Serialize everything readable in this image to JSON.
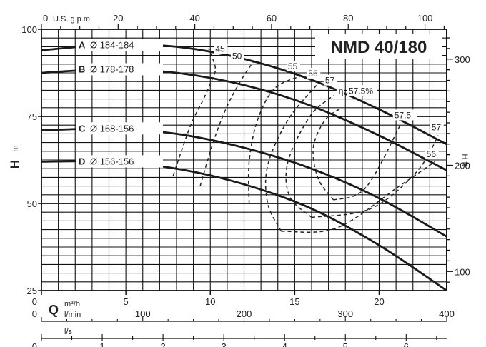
{
  "chart_data": {
    "type": "line",
    "title": "NMD 40/180",
    "xlabel": "Q",
    "ylabel": "H",
    "x_unit": "m³/h",
    "y_unit": "m",
    "xlim": [
      0,
      24
    ],
    "ylim": [
      25,
      100
    ],
    "x_ticks": [
      "0",
      "5",
      "10",
      "15",
      "20"
    ],
    "y_ticks": [
      "25",
      "50",
      "75",
      "100"
    ],
    "grid": true,
    "secondary_axes": {
      "top": {
        "label": "U.S. g.p.m.",
        "ticks": [
          "0",
          "20",
          "40",
          "60",
          "80",
          "100"
        ]
      },
      "right": {
        "label": "H ft",
        "ticks": [
          "100",
          "200",
          "300"
        ]
      },
      "bottom_lmin": {
        "label": "l/min",
        "ticks": [
          "0",
          "100",
          "200",
          "300",
          "400"
        ]
      },
      "bottom_ls": {
        "label": "l/s",
        "ticks": [
          "0",
          "1",
          "2",
          "3",
          "4",
          "5",
          "6"
        ]
      }
    },
    "series": [
      {
        "letter": "A",
        "name": "Ø 184-184",
        "x": [
          0,
          4,
          8,
          12,
          16,
          20,
          24
        ],
        "y": [
          94,
          95.5,
          95,
          91.5,
          85.5,
          77,
          67
        ]
      },
      {
        "letter": "B",
        "name": "Ø 178-178",
        "x": [
          0,
          4,
          8,
          12,
          16,
          20,
          24
        ],
        "y": [
          87.5,
          88.5,
          87.5,
          84,
          78,
          69.5,
          59.5
        ]
      },
      {
        "letter": "C",
        "name": "Ø 168-156",
        "x": [
          0,
          4,
          8,
          12,
          16,
          20,
          24
        ],
        "y": [
          71,
          71.5,
          70,
          66,
          60,
          51.5,
          40.5
        ]
      },
      {
        "letter": "D",
        "name": "Ø 156-156",
        "x": [
          0,
          4,
          8,
          12,
          16,
          20,
          24
        ],
        "y": [
          62,
          62,
          60,
          55.5,
          48.5,
          38,
          25
        ]
      }
    ],
    "efficiency_curves": [
      {
        "label": "45",
        "x": [
          7.8,
          8.8,
          9.6,
          10.1,
          10.3,
          9.9
        ],
        "y": [
          58,
          72,
          80,
          85.5,
          89,
          94.5
        ]
      },
      {
        "label": "50",
        "x": [
          9.4,
          10.2,
          11,
          11.9,
          12.6
        ],
        "y": [
          55,
          68,
          78,
          86,
          91
        ]
      },
      {
        "label": "55",
        "x": [
          12.3,
          12.3,
          12.8,
          13.8,
          15.3
        ],
        "y": [
          50,
          62,
          74,
          83,
          86.5
        ]
      },
      {
        "label": "56",
        "x": [
          14.2,
          13.4,
          13.4,
          14.6,
          16.3
        ],
        "y": [
          42,
          50,
          61,
          74,
          84
        ]
      },
      {
        "label": "57",
        "x": [
          16,
          14.7,
          14.6,
          15.9,
          17.3
        ],
        "y": [
          46,
          52,
          62,
          75,
          81
        ]
      },
      {
        "label": "57.5%",
        "x": [
          17.3,
          16.4,
          16.1,
          16.8,
          17.8
        ],
        "y": [
          51,
          57,
          66,
          74,
          77.5
        ]
      },
      {
        "label": "57.5",
        "x": [
          17.3,
          19.2,
          21.3
        ],
        "y": [
          51,
          54.5,
          73
        ]
      },
      {
        "label": "57",
        "x": [
          16,
          19.5,
          22.2,
          23.5
        ],
        "y": [
          46,
          48.5,
          59,
          69.5
        ]
      },
      {
        "label": "56",
        "x": [
          14.2,
          17.5,
          21.2,
          23.3
        ],
        "y": [
          42,
          43,
          55,
          62
        ]
      }
    ],
    "eta_symbol": "η"
  }
}
